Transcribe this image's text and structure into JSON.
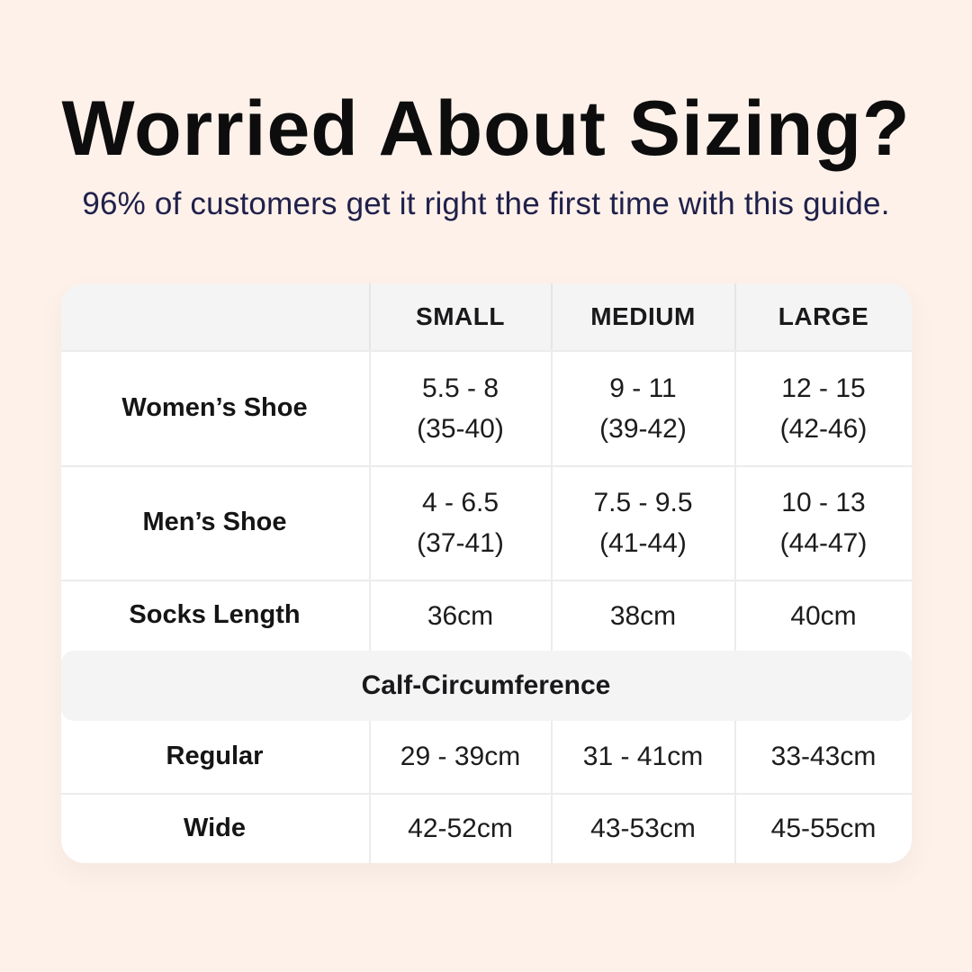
{
  "page": {
    "title": "Worried About Sizing?",
    "subtitle": "96% of customers get it right the first time with this guide.",
    "colors": {
      "background": "#fdf1ea",
      "title_text": "#0d0d0d",
      "subtitle_text": "#20204a",
      "table_background": "#ffffff",
      "band_background": "#f5f4f4",
      "divider": "#ececec",
      "body_text": "#1c1c1c"
    }
  },
  "table": {
    "header": {
      "col0": "",
      "col1": "SMALL",
      "col2": "MEDIUM",
      "col3": "LARGE"
    },
    "rows": [
      {
        "label": "Women’s Shoe",
        "cells": [
          {
            "line1": "5.5 - 8",
            "line2": "(35-40)"
          },
          {
            "line1": "9 - 11",
            "line2": "(39-42)"
          },
          {
            "line1": "12 - 15",
            "line2": "(42-46)"
          }
        ]
      },
      {
        "label": "Men’s Shoe",
        "cells": [
          {
            "line1": "4 - 6.5",
            "line2": "(37-41)"
          },
          {
            "line1": "7.5 - 9.5",
            "line2": "(41-44)"
          },
          {
            "line1": "10 - 13",
            "line2": "(44-47)"
          }
        ]
      },
      {
        "label": "Socks Length",
        "cells": [
          {
            "line1": "36cm",
            "line2": ""
          },
          {
            "line1": "38cm",
            "line2": ""
          },
          {
            "line1": "40cm",
            "line2": ""
          }
        ]
      }
    ],
    "section_header": "Calf-Circumference",
    "calf_rows": [
      {
        "label": "Regular",
        "cells": [
          {
            "line1": "29 - 39cm"
          },
          {
            "line1": "31 - 41cm"
          },
          {
            "line1": "33-43cm"
          }
        ]
      },
      {
        "label": "Wide",
        "cells": [
          {
            "line1": "42-52cm"
          },
          {
            "line1": "43-53cm"
          },
          {
            "line1": "45-55cm"
          }
        ]
      }
    ]
  }
}
